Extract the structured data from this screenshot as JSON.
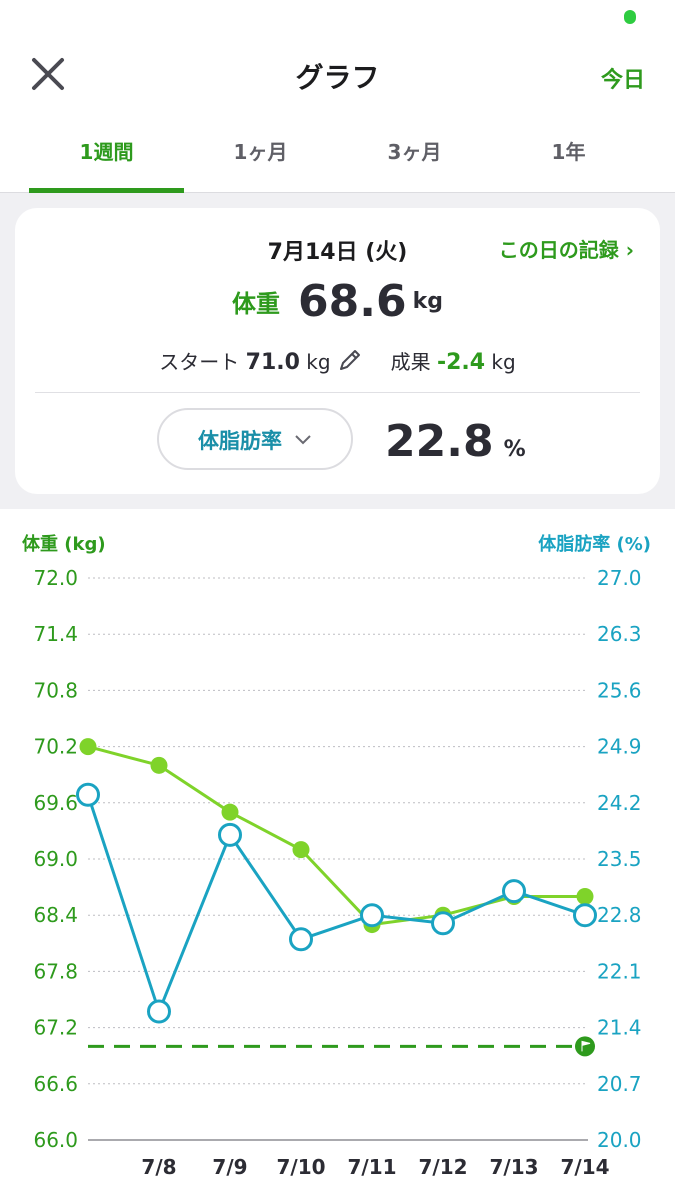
{
  "header": {
    "title": "グラフ",
    "today_label": "今日"
  },
  "tabs": [
    {
      "label": "1週間",
      "active": true
    },
    {
      "label": "1ヶ月",
      "active": false
    },
    {
      "label": "3ヶ月",
      "active": false
    },
    {
      "label": "1年",
      "active": false
    }
  ],
  "summary": {
    "date": "7月14日 (火)",
    "day_record_link": "この日の記録 ›",
    "weight_label": "体重",
    "weight_value": "68.6",
    "weight_unit": "kg",
    "start_label": "スタート",
    "start_value": "71.0",
    "start_unit": "kg",
    "result_label": "成果",
    "result_value": "-2.4",
    "result_unit": "kg",
    "metric_selector": "体脂肪率",
    "metric_value": "22.8",
    "metric_unit": "%"
  },
  "colors": {
    "brand_green": "#2e9a1d",
    "weight_line": "#7fd32a",
    "fat_line": "#1aa3c2",
    "goal_line": "#2e9a1d"
  },
  "chart_data": {
    "type": "line",
    "left_axis_label": "体重 (kg)",
    "right_axis_label": "体脂肪率 (%)",
    "left_ylim": [
      66.0,
      72.0
    ],
    "right_ylim": [
      20.0,
      27.0
    ],
    "left_ticks": [
      "72.0",
      "71.4",
      "70.8",
      "70.2",
      "69.6",
      "69.0",
      "68.4",
      "67.8",
      "67.2",
      "66.6",
      "66.0"
    ],
    "right_ticks": [
      "27.0",
      "26.3",
      "25.6",
      "24.9",
      "24.2",
      "23.5",
      "22.8",
      "22.1",
      "21.4",
      "20.7",
      "20.0"
    ],
    "x_labels": [
      "7/8",
      "7/9",
      "7/10",
      "7/11",
      "7/12",
      "7/13",
      "7/14"
    ],
    "x_points": [
      "7/7",
      "7/8",
      "7/9",
      "7/10",
      "7/11",
      "7/12",
      "7/13",
      "7/14"
    ],
    "series": [
      {
        "axis": "left",
        "values": [
          70.2,
          70.0,
          69.5,
          69.1,
          68.3,
          68.4,
          68.6,
          68.6
        ]
      },
      {
        "axis": "right",
        "values": [
          24.3,
          21.6,
          23.8,
          22.5,
          22.8,
          22.7,
          23.1,
          22.8
        ]
      }
    ],
    "goal_weight": 67.0,
    "grid": "horizontal dotted"
  }
}
